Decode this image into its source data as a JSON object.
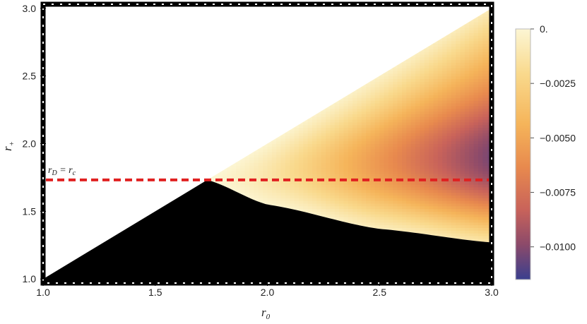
{
  "chart_data": {
    "type": "heatmap",
    "title": "",
    "xlabel": "r",
    "xlabel_sub": "0",
    "ylabel": "r",
    "ylabel_sub": "+",
    "xlim": [
      1.0,
      3.0
    ],
    "ylim": [
      0.97,
      3.03
    ],
    "x_ticks": [
      "1.0",
      "1.5",
      "2.0",
      "2.5",
      "3.0"
    ],
    "y_ticks": [
      "1.0",
      "1.5",
      "2.0",
      "2.5",
      "3.0"
    ],
    "region_upper_bound": "r+ = r0",
    "region_lower_bound_left": "r+ = r0 for r0 ≤ 1.732",
    "region_lower_bound_right": [
      {
        "x": 1.732,
        "y": 1.732
      },
      {
        "x": 2.0,
        "y": 1.55
      },
      {
        "x": 2.5,
        "y": 1.37
      },
      {
        "x": 3.0,
        "y": 1.27
      }
    ],
    "black_region": "below r+ = r0 diagonal and below the lower-bound curve",
    "value_range": [
      -0.0115,
      0.0
    ],
    "colorbar_ticks": [
      "0.",
      "−0.0025",
      "−0.0050",
      "−0.0075",
      "−0.0100"
    ],
    "colorbar_tick_values": [
      0.0,
      -0.0025,
      -0.005,
      -0.0075,
      -0.01
    ],
    "colormap": [
      "#fcf6d4",
      "#f9d98c",
      "#f5b45a",
      "#e88a4e",
      "#c9635a",
      "#8c4a6a",
      "#3a3f8e"
    ],
    "reference_line": {
      "y": 1.732,
      "label_main": "r",
      "label_sub": "D",
      "label_mid": " = r",
      "label_sub2": "c",
      "color": "#e02020",
      "style": "dashed"
    },
    "grid": false
  }
}
